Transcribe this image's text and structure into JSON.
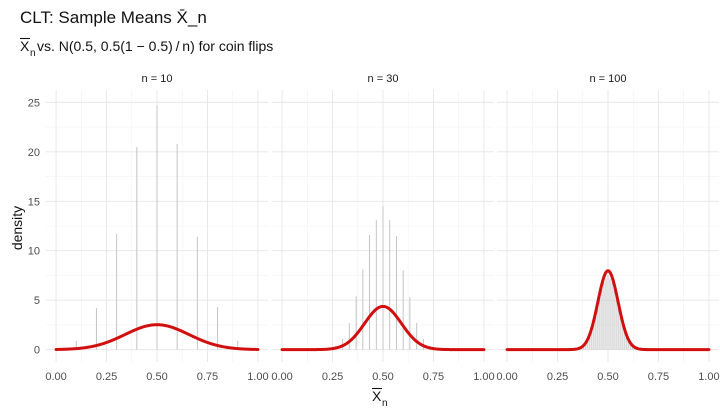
{
  "chart_data": {
    "type": "bar",
    "title": "CLT: Sample Means X̄_n",
    "subtitle": {
      "xbar": "X",
      "sub": "n",
      "text": " vs. N(0.5, 0.5(1 − 0.5) / n) for coin flips"
    },
    "xlabel": {
      "text": "X",
      "sub": "n"
    },
    "ylabel": "density",
    "xlim": [
      0,
      1
    ],
    "ylim": [
      0,
      25
    ],
    "xticks": [
      "0.00",
      "0.25",
      "0.50",
      "0.75",
      "1.00"
    ],
    "xtick_values": [
      0,
      0.25,
      0.5,
      0.75,
      1
    ],
    "yticks": [
      "0",
      "5",
      "10",
      "15",
      "20",
      "25"
    ],
    "ytick_values": [
      0,
      5,
      10,
      15,
      20,
      25
    ],
    "grid": true,
    "colors": {
      "curve": "#d10f0f",
      "bars": "#c4c4c4"
    },
    "panels": [
      {
        "strip": "n = 10",
        "n": 10,
        "x": [
          0.1,
          0.2,
          0.3,
          0.4,
          0.5,
          0.6,
          0.7,
          0.8,
          0.9
        ],
        "density": [
          0.9,
          4.2,
          11.7,
          20.5,
          24.7,
          20.8,
          11.4,
          4.3,
          0.9
        ]
      },
      {
        "strip": "n = 30",
        "n": 30,
        "x": [
          0.267,
          0.3,
          0.333,
          0.367,
          0.4,
          0.433,
          0.467,
          0.5,
          0.533,
          0.567,
          0.6,
          0.633,
          0.667,
          0.7,
          0.733
        ],
        "density": [
          0.4,
          1.1,
          2.7,
          5.4,
          8.1,
          11.6,
          13.1,
          14.5,
          13.1,
          11.5,
          8.0,
          5.3,
          2.7,
          1.1,
          0.4
        ]
      },
      {
        "strip": "n = 100",
        "n": 100,
        "x": [
          0.36,
          0.37,
          0.38,
          0.39,
          0.4,
          0.41,
          0.42,
          0.43,
          0.44,
          0.45,
          0.46,
          0.47,
          0.48,
          0.49,
          0.5,
          0.51,
          0.52,
          0.53,
          0.54,
          0.55,
          0.56,
          0.57,
          0.58,
          0.59,
          0.6,
          0.61,
          0.62,
          0.63,
          0.64
        ],
        "density": [
          0.2,
          0.3,
          0.6,
          0.9,
          1.3,
          1.8,
          2.4,
          3.1,
          3.9,
          4.7,
          5.5,
          6.2,
          6.8,
          7.2,
          7.5,
          7.2,
          6.8,
          6.2,
          5.5,
          4.7,
          3.9,
          3.1,
          2.4,
          1.8,
          1.3,
          0.9,
          0.6,
          0.3,
          0.2
        ]
      }
    ]
  }
}
